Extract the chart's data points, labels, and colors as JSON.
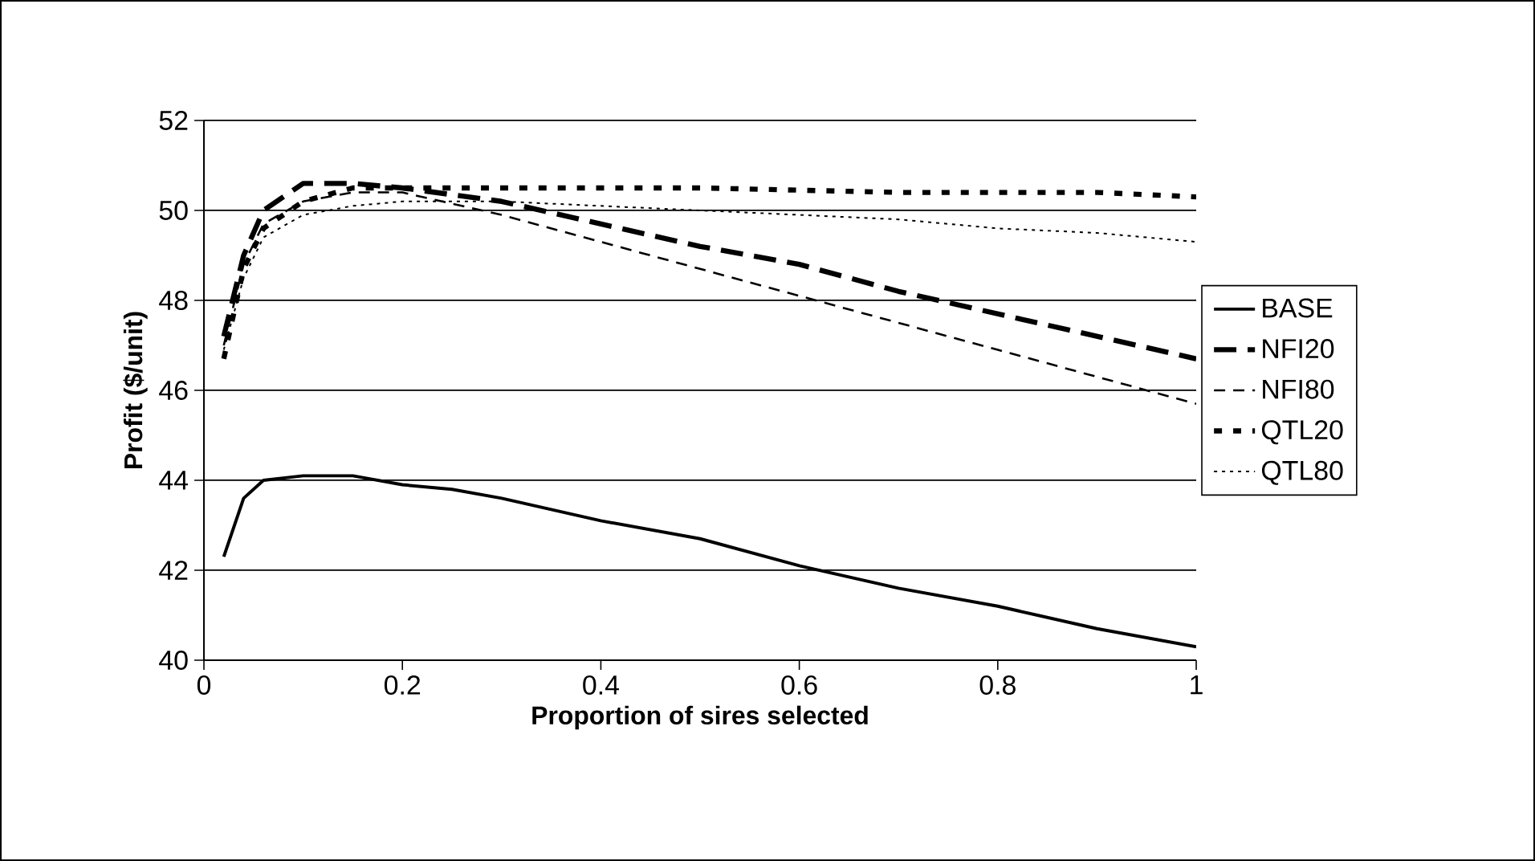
{
  "chart_data": {
    "type": "line",
    "xlabel": "Proportion of sires selected",
    "ylabel": "Profit ($/unit)",
    "xlim": [
      0,
      1
    ],
    "xticks": [
      0,
      0.2,
      0.4,
      0.6,
      0.8,
      1
    ],
    "ylim": [
      40,
      52
    ],
    "yticks": [
      40,
      42,
      44,
      46,
      48,
      50,
      52
    ],
    "grid": "y",
    "legend": "right",
    "marker": "none",
    "series": [
      {
        "name": "BASE",
        "color": "#000000",
        "line_style": "solid",
        "x": [
          0.02,
          0.04,
          0.06,
          0.1,
          0.15,
          0.2,
          0.25,
          0.3,
          0.4,
          0.5,
          0.6,
          0.7,
          0.8,
          0.9,
          1
        ],
        "values": [
          42.3,
          43.6,
          44.0,
          44.1,
          44.1,
          43.9,
          43.8,
          43.6,
          43.1,
          42.7,
          42.1,
          41.6,
          41.2,
          40.7,
          40.3
        ]
      },
      {
        "name": "NFI20",
        "color": "#000000",
        "line_style": "dashed",
        "x": [
          0.02,
          0.04,
          0.06,
          0.1,
          0.15,
          0.2,
          0.3,
          0.4,
          0.5,
          0.6,
          0.7,
          0.8,
          0.9,
          1
        ],
        "values": [
          47.2,
          49.0,
          50.0,
          50.6,
          50.6,
          50.5,
          50.2,
          49.7,
          49.2,
          48.8,
          48.2,
          47.7,
          47.2,
          46.7
        ]
      },
      {
        "name": "NFI80",
        "color": "#000000",
        "line_style": "dashed",
        "x": [
          0.02,
          0.04,
          0.06,
          0.1,
          0.15,
          0.2,
          0.3,
          0.4,
          0.5,
          0.6,
          0.7,
          0.8,
          0.9,
          1
        ],
        "values": [
          47.0,
          48.8,
          49.7,
          50.2,
          50.4,
          50.4,
          49.9,
          49.3,
          48.7,
          48.1,
          47.5,
          46.9,
          46.3,
          45.7
        ]
      },
      {
        "name": "QTL20",
        "color": "#000000",
        "line_style": "dashed",
        "x": [
          0.02,
          0.04,
          0.06,
          0.1,
          0.15,
          0.2,
          0.3,
          0.5,
          0.7,
          0.9,
          1
        ],
        "values": [
          46.7,
          48.7,
          49.6,
          50.2,
          50.5,
          50.5,
          50.5,
          50.5,
          50.4,
          50.4,
          50.3
        ]
      },
      {
        "name": "QTL80",
        "color": "#000000",
        "line_style": "dotted",
        "x": [
          0.02,
          0.04,
          0.06,
          0.1,
          0.15,
          0.2,
          0.3,
          0.4,
          0.5,
          0.6,
          0.7,
          0.8,
          0.9,
          1
        ],
        "values": [
          46.9,
          48.5,
          49.4,
          49.9,
          50.1,
          50.2,
          50.2,
          50.1,
          50.0,
          49.9,
          49.8,
          49.6,
          49.5,
          49.3
        ]
      }
    ]
  }
}
